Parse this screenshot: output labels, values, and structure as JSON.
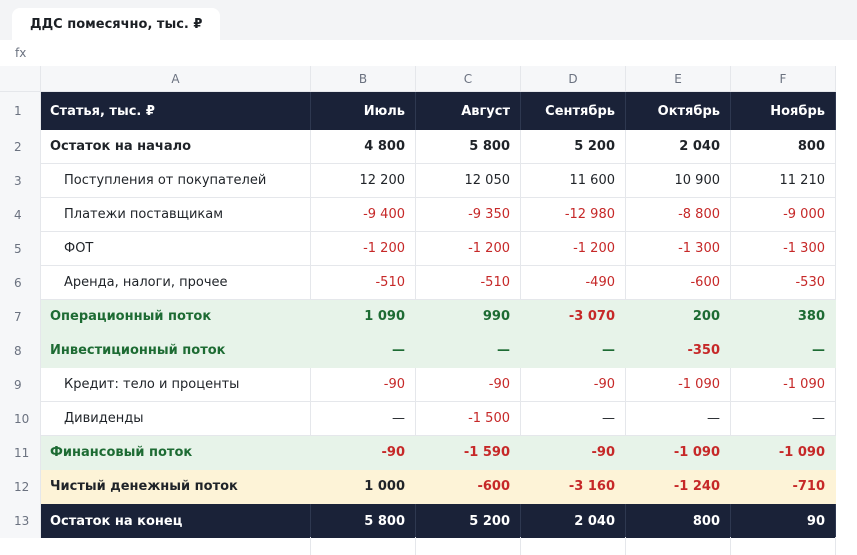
{
  "sheet_tab": "ДДС помесячно, тыс. ₽",
  "formula_label": "fx",
  "columns": [
    "A",
    "B",
    "C",
    "D",
    "E",
    "F"
  ],
  "rows": [
    {
      "num": "1",
      "style": "head",
      "cells": [
        "Статья, тыс. ₽",
        "Июль",
        "Август",
        "Сентябрь",
        "Октябрь",
        "Ноябрь"
      ]
    },
    {
      "num": "2",
      "style": "bold",
      "cells": [
        "Остаток на начало",
        "4 800",
        "5 800",
        "5 200",
        "2 040",
        "800"
      ]
    },
    {
      "num": "3",
      "style": "indent",
      "cells": [
        "Поступления от покупателей",
        "12 200",
        "12 050",
        "11 600",
        "10 900",
        "11 210"
      ]
    },
    {
      "num": "4",
      "style": "indent",
      "cells": [
        "Платежи поставщикам",
        "-9 400",
        "-9 350",
        "-12 980",
        "-8 800",
        "-9 000"
      ]
    },
    {
      "num": "5",
      "style": "indent",
      "cells": [
        "ФОТ",
        "-1 200",
        "-1 200",
        "-1 200",
        "-1 300",
        "-1 300"
      ]
    },
    {
      "num": "6",
      "style": "indent",
      "cells": [
        "Аренда, налоги, прочее",
        "-510",
        "-510",
        "-490",
        "-600",
        "-530"
      ]
    },
    {
      "num": "7",
      "style": "green",
      "cells": [
        "Операционный поток",
        "1 090",
        "990",
        "-3 070",
        "200",
        "380"
      ]
    },
    {
      "num": "8",
      "style": "green",
      "cells": [
        "Инвестиционный поток",
        "—",
        "—",
        "—",
        "-350",
        "—"
      ]
    },
    {
      "num": "9",
      "style": "indent",
      "cells": [
        "Кредит: тело и проценты",
        "-90",
        "-90",
        "-90",
        "-1 090",
        "-1 090"
      ]
    },
    {
      "num": "10",
      "style": "indent",
      "cells": [
        "Дивиденды",
        "—",
        "-1 500",
        "—",
        "—",
        "—"
      ]
    },
    {
      "num": "11",
      "style": "green",
      "cells": [
        "Финансовый поток",
        "-90",
        "-1 590",
        "-90",
        "-1 090",
        "-1 090"
      ]
    },
    {
      "num": "12",
      "style": "yellow",
      "cells": [
        "Чистый денежный поток",
        "1 000",
        "-600",
        "-3 160",
        "-1 240",
        "-710"
      ]
    },
    {
      "num": "13",
      "style": "end",
      "cells": [
        "Остаток на конец",
        "5 800",
        "5 200",
        "2 040",
        "800",
        "90"
      ]
    }
  ],
  "colors": {
    "header_bg": "#1a2238",
    "negative": "#c62828",
    "section_green_bg": "#e7f3e9",
    "section_green_text": "#1d6b33",
    "total_yellow_bg": "#fdf3d7"
  }
}
